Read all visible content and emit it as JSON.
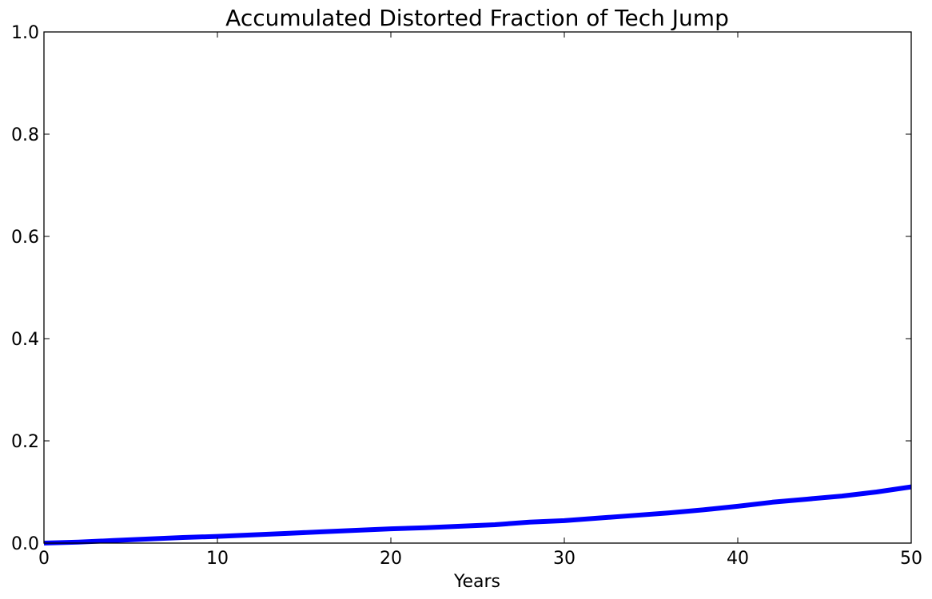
{
  "chart_data": {
    "type": "line",
    "title": "Accumulated Distorted Fraction of Tech Jump",
    "xlabel": "Years",
    "ylabel": "",
    "xlim": [
      0,
      50
    ],
    "ylim": [
      0.0,
      1.0
    ],
    "x_ticks": [
      0,
      10,
      20,
      30,
      40,
      50
    ],
    "x_tick_labels": [
      "0",
      "10",
      "20",
      "30",
      "40",
      "50"
    ],
    "y_ticks": [
      0.0,
      0.2,
      0.4,
      0.6,
      0.8,
      1.0
    ],
    "y_tick_labels": [
      "0.0",
      "0.2",
      "0.4",
      "0.6",
      "0.8",
      "1.0"
    ],
    "grid": false,
    "legend": "none",
    "series": [
      {
        "color": "#0000ff",
        "x": [
          0,
          2,
          4,
          6,
          8,
          10,
          12,
          14,
          16,
          18,
          20,
          22,
          24,
          26,
          28,
          30,
          32,
          34,
          36,
          38,
          40,
          42,
          44,
          46,
          48,
          50
        ],
        "y": [
          0.0,
          0.002,
          0.005,
          0.008,
          0.011,
          0.013,
          0.016,
          0.019,
          0.022,
          0.025,
          0.028,
          0.03,
          0.033,
          0.036,
          0.041,
          0.044,
          0.049,
          0.054,
          0.059,
          0.065,
          0.072,
          0.08,
          0.086,
          0.092,
          0.1,
          0.11
        ]
      }
    ]
  }
}
